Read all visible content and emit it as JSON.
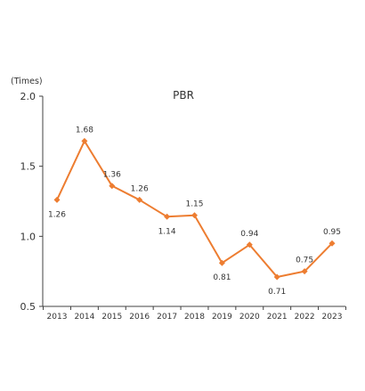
{
  "chart_data": {
    "type": "line",
    "title": "PBR",
    "ylabel": "(Times)",
    "xlabel": "",
    "categories": [
      "2013",
      "2014",
      "2015",
      "2016",
      "2017",
      "2018",
      "2019",
      "2020",
      "2021",
      "2022",
      "2023"
    ],
    "series": [
      {
        "values": [
          1.26,
          1.68,
          1.36,
          1.26,
          1.14,
          1.15,
          0.81,
          0.94,
          0.71,
          0.75,
          0.95
        ],
        "labels": [
          "1.26",
          "1.68",
          "1.36",
          "1.26",
          "1.14",
          "1.15",
          "0.81",
          "0.94",
          "0.71",
          "0.75",
          "0.95"
        ]
      }
    ],
    "yticks": [
      "2.0",
      "1.5",
      "1.0",
      "0.5"
    ],
    "ylim": [
      0.5,
      2.0
    ],
    "grid": false,
    "line_color": "#ed7d31",
    "axis_color": "#404040"
  }
}
